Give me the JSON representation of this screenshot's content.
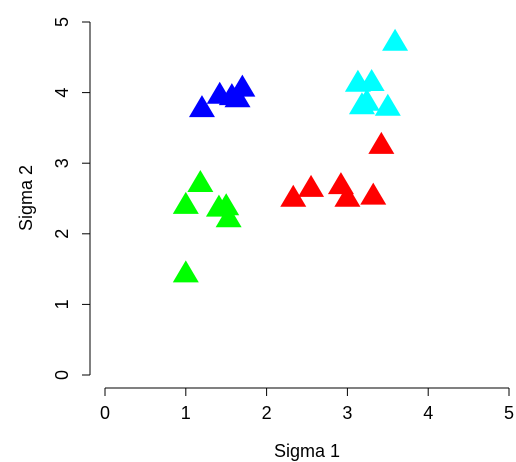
{
  "chart_data": {
    "type": "scatter",
    "xlabel": "Sigma 1",
    "ylabel": "Sigma 2",
    "xlim": [
      0,
      5
    ],
    "ylim": [
      0,
      5
    ],
    "xticks": [
      0,
      1,
      2,
      3,
      4,
      5
    ],
    "yticks": [
      0,
      1,
      2,
      3,
      4,
      5
    ],
    "marker": "triangle",
    "series": [
      {
        "color": "#0000ff",
        "x": [
          1.2,
          1.42,
          1.57,
          1.64,
          1.7
        ],
        "y": [
          3.78,
          3.97,
          3.95,
          3.92,
          4.07
        ]
      },
      {
        "color": "#00ffff",
        "x": [
          3.59,
          3.13,
          3.3,
          3.18,
          3.24,
          3.5
        ],
        "y": [
          4.72,
          4.14,
          4.15,
          3.82,
          3.87,
          3.8
        ]
      },
      {
        "color": "#ff0000",
        "x": [
          2.33,
          2.55,
          2.92,
          3.0,
          3.32,
          3.42
        ],
        "y": [
          2.51,
          2.65,
          2.69,
          2.51,
          2.54,
          3.26
        ]
      },
      {
        "color": "#00ff00",
        "x": [
          1.0,
          1.0,
          1.18,
          1.41,
          1.5,
          1.53
        ],
        "y": [
          1.44,
          2.41,
          2.72,
          2.37,
          2.39,
          2.22
        ]
      }
    ]
  }
}
